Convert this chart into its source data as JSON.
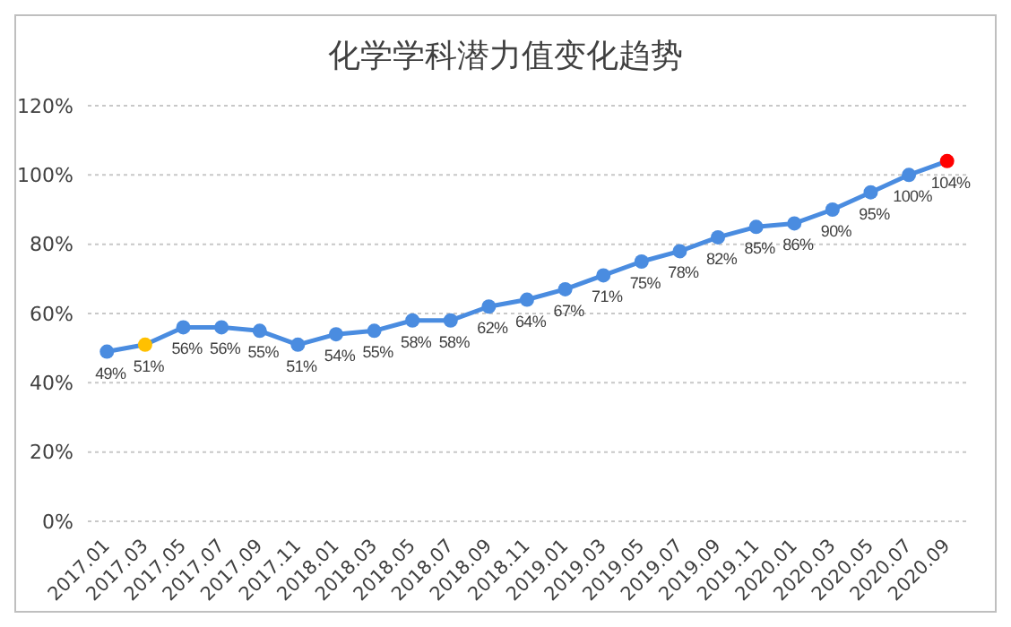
{
  "chart_data": {
    "type": "line",
    "title": "化学学科潜力值变化趋势",
    "categories": [
      "2017.01",
      "2017.03",
      "2017.05",
      "2017.07",
      "2017.09",
      "2017.11",
      "2018.01",
      "2018.03",
      "2018.05",
      "2018.07",
      "2018.09",
      "2018.11",
      "2019.01",
      "2019.03",
      "2019.05",
      "2019.07",
      "2019.09",
      "2019.11",
      "2020.01",
      "2020.03",
      "2020.05",
      "2020.07",
      "2020.09"
    ],
    "series": [
      {
        "color": "#4a8ce0",
        "values": [
          49,
          51,
          56,
          56,
          55,
          51,
          54,
          55,
          58,
          58,
          62,
          64,
          67,
          71,
          75,
          78,
          82,
          85,
          86,
          90,
          95,
          100,
          104
        ],
        "colors": [
          "#4a8ce0",
          "#ffc000",
          "#4a8ce0",
          "#4a8ce0",
          "#4a8ce0",
          "#4a8ce0",
          "#4a8ce0",
          "#4a8ce0",
          "#4a8ce0",
          "#4a8ce0",
          "#4a8ce0",
          "#4a8ce0",
          "#4a8ce0",
          "#4a8ce0",
          "#4a8ce0",
          "#4a8ce0",
          "#4a8ce0",
          "#4a8ce0",
          "#4a8ce0",
          "#4a8ce0",
          "#4a8ce0",
          "#4a8ce0",
          "#ff0000"
        ],
        "value_labels": [
          "49%",
          "51%",
          "56%",
          "56%",
          "55%",
          "51%",
          "54%",
          "55%",
          "58%",
          "58%",
          "62%",
          "64%",
          "67%",
          "71%",
          "75%",
          "78%",
          "82%",
          "85%",
          "86%",
          "90%",
          "95%",
          "100%",
          "104%"
        ]
      }
    ],
    "ylim": [
      0,
      120
    ],
    "yticks": [
      {
        "value": 0,
        "label": "0%"
      },
      {
        "value": 20,
        "label": "20%"
      },
      {
        "value": 40,
        "label": "40%"
      },
      {
        "value": 60,
        "label": "60%"
      },
      {
        "value": 80,
        "label": "80%"
      },
      {
        "value": 100,
        "label": "100%"
      },
      {
        "value": 120,
        "label": "120%"
      }
    ],
    "grid": "y",
    "legend": false,
    "marker": "circle",
    "line_style": "solid"
  }
}
